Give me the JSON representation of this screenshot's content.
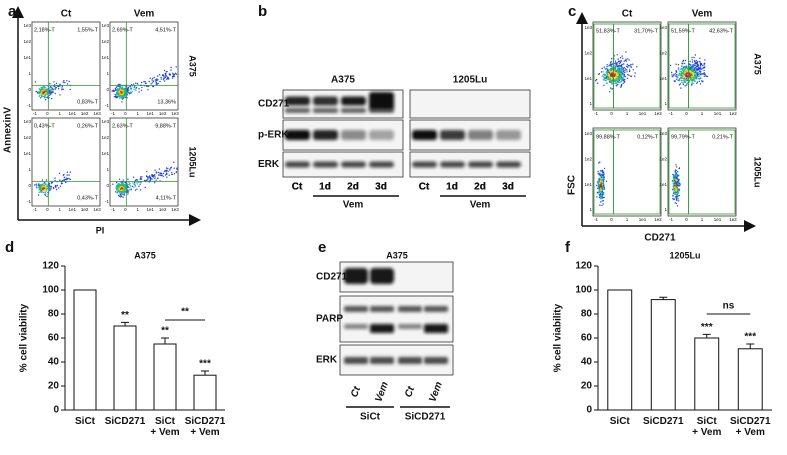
{
  "chart_data": [
    {
      "type": "bar",
      "letter": "d",
      "title": "A375",
      "y_label": "% cell viability",
      "categories": [
        "SiCt",
        "SiCD271",
        "SiCt\n+ Vem",
        "SiCD271\n+ Vem"
      ],
      "values": [
        100,
        70,
        55,
        29
      ],
      "errors": [
        0,
        3,
        5,
        3.5
      ],
      "annotations": [
        null,
        "**",
        "**",
        "***"
      ],
      "bracket_label": "**",
      "color": "#ffffff",
      "ylim": [
        0,
        120
      ],
      "yticks": [
        0,
        20,
        40,
        60,
        80,
        100,
        120
      ]
    },
    {
      "type": "bar",
      "letter": "f",
      "title": "1205Lu",
      "y_label": "% cell viability",
      "categories": [
        "SiCt",
        "SiCD271",
        "SiCt\n+ Vem",
        "SiCD271\n+ Vem"
      ],
      "values": [
        100,
        92,
        60,
        51
      ],
      "errors": [
        0,
        2,
        3,
        4
      ],
      "annotations": [
        null,
        null,
        "***",
        "***"
      ],
      "bracket_label": "ns",
      "color": "#ffffff",
      "ylim": [
        0,
        120
      ],
      "yticks": [
        0,
        20,
        40,
        60,
        80,
        100,
        120
      ]
    }
  ],
  "panel_a": {
    "letter": "a",
    "columns": [
      "Ct",
      "Vem"
    ],
    "rows": [
      "A375",
      "1205Lu"
    ],
    "y_label": "AnnexinV",
    "x_label": "PI",
    "y_tick_labels": [
      "1e3",
      "1e2",
      "1e1",
      "1",
      "0",
      "-1"
    ],
    "x_tick_labels": [
      "-1",
      "0",
      "1",
      "1e1",
      "1e2",
      "1e3"
    ],
    "plots": [
      [
        "2,18%-T",
        "1,55%-T",
        "0,83%-T"
      ],
      [
        "2,69%-T",
        "4,51%-T",
        "13,36%"
      ],
      [
        "0,43%-T",
        "0,26%-T",
        "0,43%-T"
      ],
      [
        "2,63%-T",
        "9,88%-T",
        "4,11%-T"
      ]
    ]
  },
  "panel_b": {
    "letter": "b",
    "groups": [
      "A375",
      "1205Lu"
    ],
    "rows": [
      "CD271",
      "p-ERK",
      "ERK"
    ],
    "lanes": [
      "Ct",
      "1d",
      "2d",
      "3d"
    ],
    "treatment": "Vem"
  },
  "panel_c": {
    "letter": "c",
    "columns": [
      "Ct",
      "Vem"
    ],
    "rows": [
      "A375",
      "1205Lu"
    ],
    "y_label": "FSC",
    "x_label": "CD271",
    "y_tick_labels": [
      "1e3",
      "1e2",
      "1e1",
      "1"
    ],
    "x_tick_labels": [
      "-1",
      "0",
      "1",
      "1e1",
      "1e2"
    ],
    "plots": [
      [
        "51,83%-T",
        "31,70%-T"
      ],
      [
        "51,59%-T",
        "42,63%-T"
      ],
      [
        "99,88%-T",
        "0,12%-T"
      ],
      [
        "99,79%-T",
        "0,21%-T"
      ]
    ]
  },
  "panel_e": {
    "letter": "e",
    "title": "A375",
    "rows": [
      "CD271",
      "PARP",
      "ERK"
    ],
    "lanes": [
      "Ct",
      "Vem"
    ],
    "groups": [
      "SiCt",
      "SiCD271"
    ]
  }
}
